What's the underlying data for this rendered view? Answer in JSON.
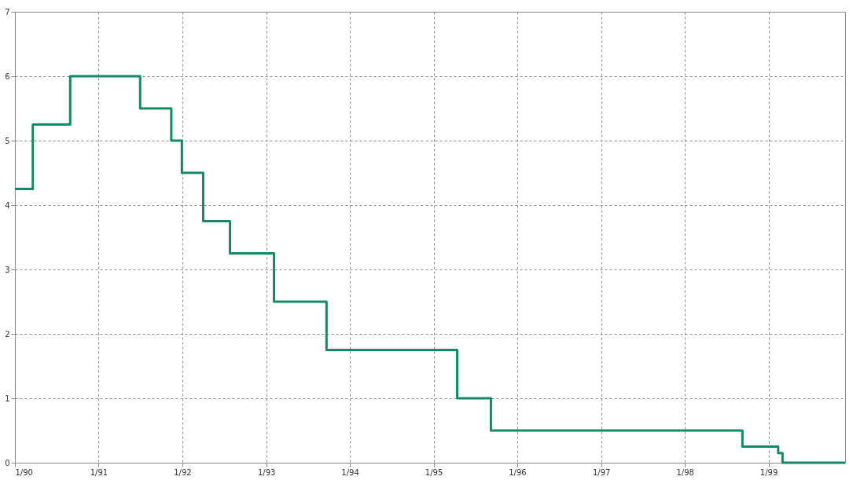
{
  "chart_data": {
    "type": "step",
    "x": [
      "1990-01-01",
      "1990-03-20",
      "1990-08-30",
      "1991-07-01",
      "1991-11-14",
      "1991-12-30",
      "1992-04-01",
      "1992-07-27",
      "1993-02-04",
      "1993-09-21",
      "1995-04-14",
      "1995-09-08",
      "1998-09-09",
      "1999-02-12",
      "1999-03-03",
      "1999-12-01"
    ],
    "series": [
      {
        "color": "#138a63",
        "values": [
          4.25,
          5.25,
          6.0,
          5.5,
          5.0,
          4.5,
          3.75,
          3.25,
          2.5,
          1.75,
          1.0,
          0.5,
          0.25,
          0.15,
          0.0,
          0.0
        ]
      }
    ],
    "xlim": [
      "1990-01-01",
      "1999-12-01"
    ],
    "xticks": [
      {
        "value": "1990-01-01",
        "label": "1/90"
      },
      {
        "value": "1991-01-01",
        "label": "1/91"
      },
      {
        "value": "1992-01-01",
        "label": "1/92"
      },
      {
        "value": "1993-01-01",
        "label": "1/93"
      },
      {
        "value": "1994-01-01",
        "label": "1/94"
      },
      {
        "value": "1995-01-01",
        "label": "1/95"
      },
      {
        "value": "1996-01-01",
        "label": "1/96"
      },
      {
        "value": "1997-01-01",
        "label": "1/97"
      },
      {
        "value": "1998-01-01",
        "label": "1/98"
      },
      {
        "value": "1999-01-01",
        "label": "1/99"
      }
    ],
    "ylim": [
      0,
      7
    ],
    "yticks": [
      0,
      1,
      2,
      3,
      4,
      5,
      6,
      7
    ],
    "grid": true,
    "line_style": "solid",
    "marker": "none"
  }
}
